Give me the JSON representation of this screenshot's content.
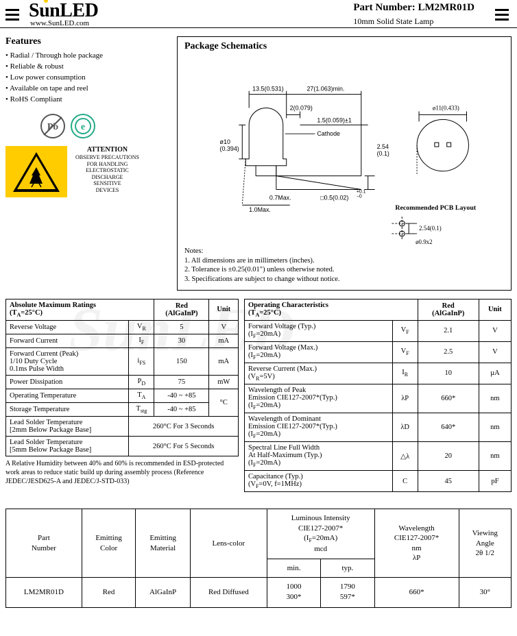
{
  "header": {
    "logo_text": "SunLED",
    "url": "www.SunLED.com",
    "part_label": "Part Number: ",
    "part_number": "LM2MR01D",
    "description": "10mm Solid State Lamp"
  },
  "features": {
    "title": "Features",
    "items": [
      "Radial / Through hole package",
      "Reliable & robust",
      "Low power consumption",
      "Available on tape and reel",
      "RoHS Compliant"
    ]
  },
  "attention": {
    "title": "ATTENTION",
    "lines": [
      "OBSERVE PRECAUTIONS",
      "FOR HANDLING",
      "ELECTROSTATIC",
      "DISCHARGE",
      "SENSITIVE",
      "DEVICES"
    ]
  },
  "schematics": {
    "title": "Package Schematics",
    "dims": {
      "d1": "13.5(0.531)",
      "d2": "27(1.063)min.",
      "d3": "2(0.079)",
      "d4": "1.5(0.059)±1",
      "cathode": "Cathode",
      "diam": "ø10\n(0.394)",
      "ring": "ø11(0.433)",
      "pitch": "2.54\n(0.1)",
      "lead": "0.7Max.",
      "sq": "□0.5(0.02)",
      "fil": "+0.1\n−0",
      "ht": "1.0Max.",
      "pcb_title": "Recommended PCB Layout",
      "pcb_pitch": "2.54(0.1)",
      "pcb_hole": "ø0.9x2"
    },
    "notes_label": "Notes:",
    "notes": [
      "1. All dimensions are in millimeters (inches).",
      "2. Tolerance is ±0.25(0.01\") unless otherwise noted.",
      "3. Specifications are subject to change without notice."
    ]
  },
  "abs": {
    "title": "Absolute Maximum Ratings\n(T",
    "ta": "A",
    "temp": "=25°C)",
    "col_red": "Red\n(AlGaInP)",
    "col_unit": "Unit",
    "rows": [
      {
        "label": "Reverse Voltage",
        "sym": "V",
        "sub": "R",
        "val": "5",
        "unit": "V"
      },
      {
        "label": "Forward Current",
        "sym": "I",
        "sub": "F",
        "val": "30",
        "unit": "mA"
      },
      {
        "label": "Forward Current (Peak)\n1/10 Duty Cycle\n0.1ms Pulse Width",
        "sym": "i",
        "sub": "FS",
        "val": "150",
        "unit": "mA"
      },
      {
        "label": "Power Dissipation",
        "sym": "P",
        "sub": "D",
        "val": "75",
        "unit": "mW"
      },
      {
        "label": "Operating Temperature",
        "sym": "T",
        "sub": "A",
        "val": "-40 ~ +85",
        "unit": "°C",
        "rowunit": true
      },
      {
        "label": "Storage Temperature",
        "sym": "T",
        "sub": "stg",
        "val": "-40 ~ +85"
      },
      {
        "label": "Lead Solder Temperature\n[2mm Below Package Base]",
        "colspan": true,
        "val": "260°C For 3 Seconds"
      },
      {
        "label": "Lead Solder Temperature\n[5mm Below Package Base]",
        "colspan": true,
        "val": "260°C For 5 Seconds"
      }
    ],
    "footnote": "A Relative Humidity between 40% and 60% is recommended in ESD-protected work areas to reduce static build up during assembly process (Reference JEDEC/JESD625-A and JEDEC/J-STD-033)"
  },
  "ops": {
    "title": "Operating Characteristics\n(T",
    "ta": "A",
    "temp": "=25°C)",
    "col_red": "Red\n(AlGaInP)",
    "col_unit": "Unit",
    "rows": [
      {
        "label": "Forward Voltage (Typ.)\n(I",
        "sub": "F",
        "tail": "=20mA)",
        "sym": "V",
        "ssub": "F",
        "val": "2.1",
        "unit": "V"
      },
      {
        "label": "Forward Voltage (Max.)\n(I",
        "sub": "F",
        "tail": "=20mA)",
        "sym": "V",
        "ssub": "F",
        "val": "2.5",
        "unit": "V"
      },
      {
        "label": "Reverse Current (Max.)\n(V",
        "sub": "R",
        "tail": "=5V)",
        "sym": "I",
        "ssub": "R",
        "val": "10",
        "unit": "µA"
      },
      {
        "label": "Wavelength of Peak\nEmission CIE127-2007*(Typ.)\n(I",
        "sub": "F",
        "tail": "=20mA)",
        "sym": "λP",
        "val": "660*",
        "unit": "nm"
      },
      {
        "label": "Wavelength of Dominant\nEmission CIE127-2007*(Typ.)\n(I",
        "sub": "F",
        "tail": "=20mA)",
        "sym": "λD",
        "val": "640*",
        "unit": "nm"
      },
      {
        "label": "Spectral Line Full Width\nAt Half-Maximum (Typ.)\n(I",
        "sub": "F",
        "tail": "=20mA)",
        "sym": "△λ",
        "val": "20",
        "unit": "nm"
      },
      {
        "label": "Capacitance (Typ.)\n(V",
        "sub": "F",
        "tail": "=0V, f=1MHz)",
        "sym": "C",
        "val": "45",
        "unit": "pF"
      }
    ]
  },
  "partTable": {
    "headers": {
      "pn": "Part\nNumber",
      "color": "Emitting\nColor",
      "mat": "Emitting\nMaterial",
      "lens": "Lens-color",
      "lum": "Luminous Intensity\nCIE127-2007*\n(I",
      "lum_sub": "F",
      "lum_tail": "=20mA)\nmcd",
      "wl": "Wavelength\nCIE127-2007*\nnm\nλP",
      "angle": "Viewing\nAngle\n2θ 1/2"
    },
    "subhead": {
      "min": "min.",
      "typ": "typ."
    },
    "row": {
      "pn": "LM2MR01D",
      "color": "Red",
      "mat": "AlGaInP",
      "lens": "Red Diffused",
      "min": "1000\n300*",
      "typ": "1790\n597*",
      "wl": "660*",
      "angle": "30°"
    }
  }
}
